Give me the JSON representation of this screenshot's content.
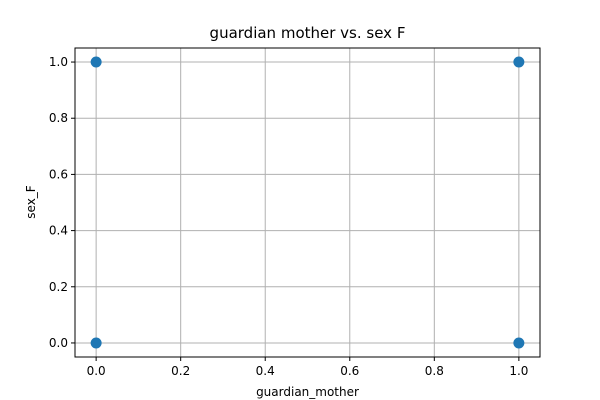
{
  "chart_data": {
    "type": "scatter",
    "title": "guardian mother vs. sex F",
    "xlabel": "guardian_mother",
    "ylabel": "sex_F",
    "xlim": [
      -0.05,
      1.05
    ],
    "ylim": [
      -0.05,
      1.05
    ],
    "xticks": [
      0.0,
      0.2,
      0.4,
      0.6,
      0.8,
      1.0
    ],
    "yticks": [
      0.0,
      0.2,
      0.4,
      0.6,
      0.8,
      1.0
    ],
    "xtick_labels": [
      "0.0",
      "0.2",
      "0.4",
      "0.6",
      "0.8",
      "1.0"
    ],
    "ytick_labels": [
      "0.0",
      "0.2",
      "0.4",
      "0.6",
      "0.8",
      "1.0"
    ],
    "grid": true,
    "series": [
      {
        "points": [
          {
            "x": 0,
            "y": 1
          },
          {
            "x": 1,
            "y": 1
          },
          {
            "x": 0,
            "y": 0
          },
          {
            "x": 1,
            "y": 0
          }
        ],
        "color": "#1f77b4"
      }
    ]
  }
}
